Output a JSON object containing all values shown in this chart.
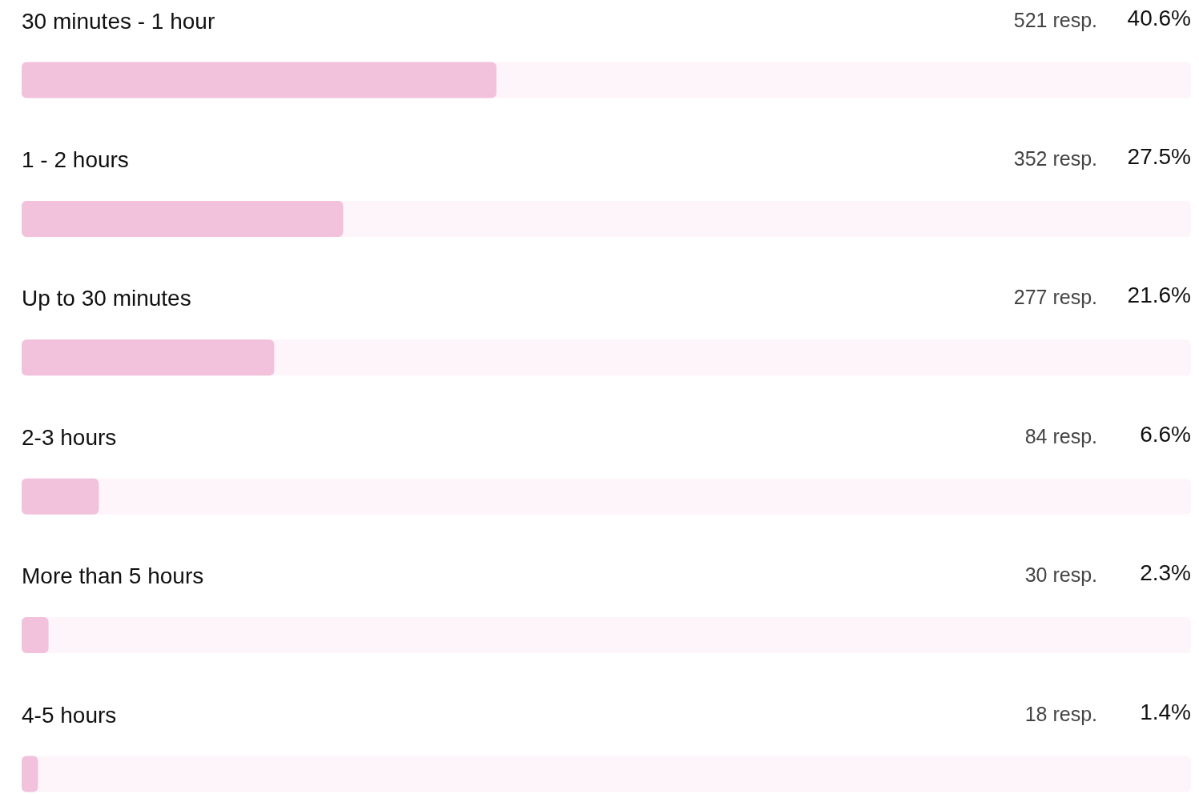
{
  "chart_data": {
    "type": "bar",
    "orientation": "horizontal",
    "categories": [
      "30 minutes - 1 hour",
      "1 - 2 hours",
      "Up to 30 minutes",
      "2-3 hours",
      "More than 5 hours",
      "4-5 hours"
    ],
    "values": [
      40.6,
      27.5,
      21.6,
      6.6,
      2.3,
      1.4
    ],
    "value_labels": [
      "40.6%",
      "27.5%",
      "21.6%",
      "6.6%",
      "2.3%",
      "1.4%"
    ],
    "color": "#f2c1dc",
    "xlim": [
      0,
      100
    ],
    "tick_labels": "y",
    "grid": false,
    "annotations": [
      "521 resp.",
      "352 resp.",
      "277 resp.",
      "84 resp.",
      "30 resp.",
      "18 resp."
    ]
  }
}
